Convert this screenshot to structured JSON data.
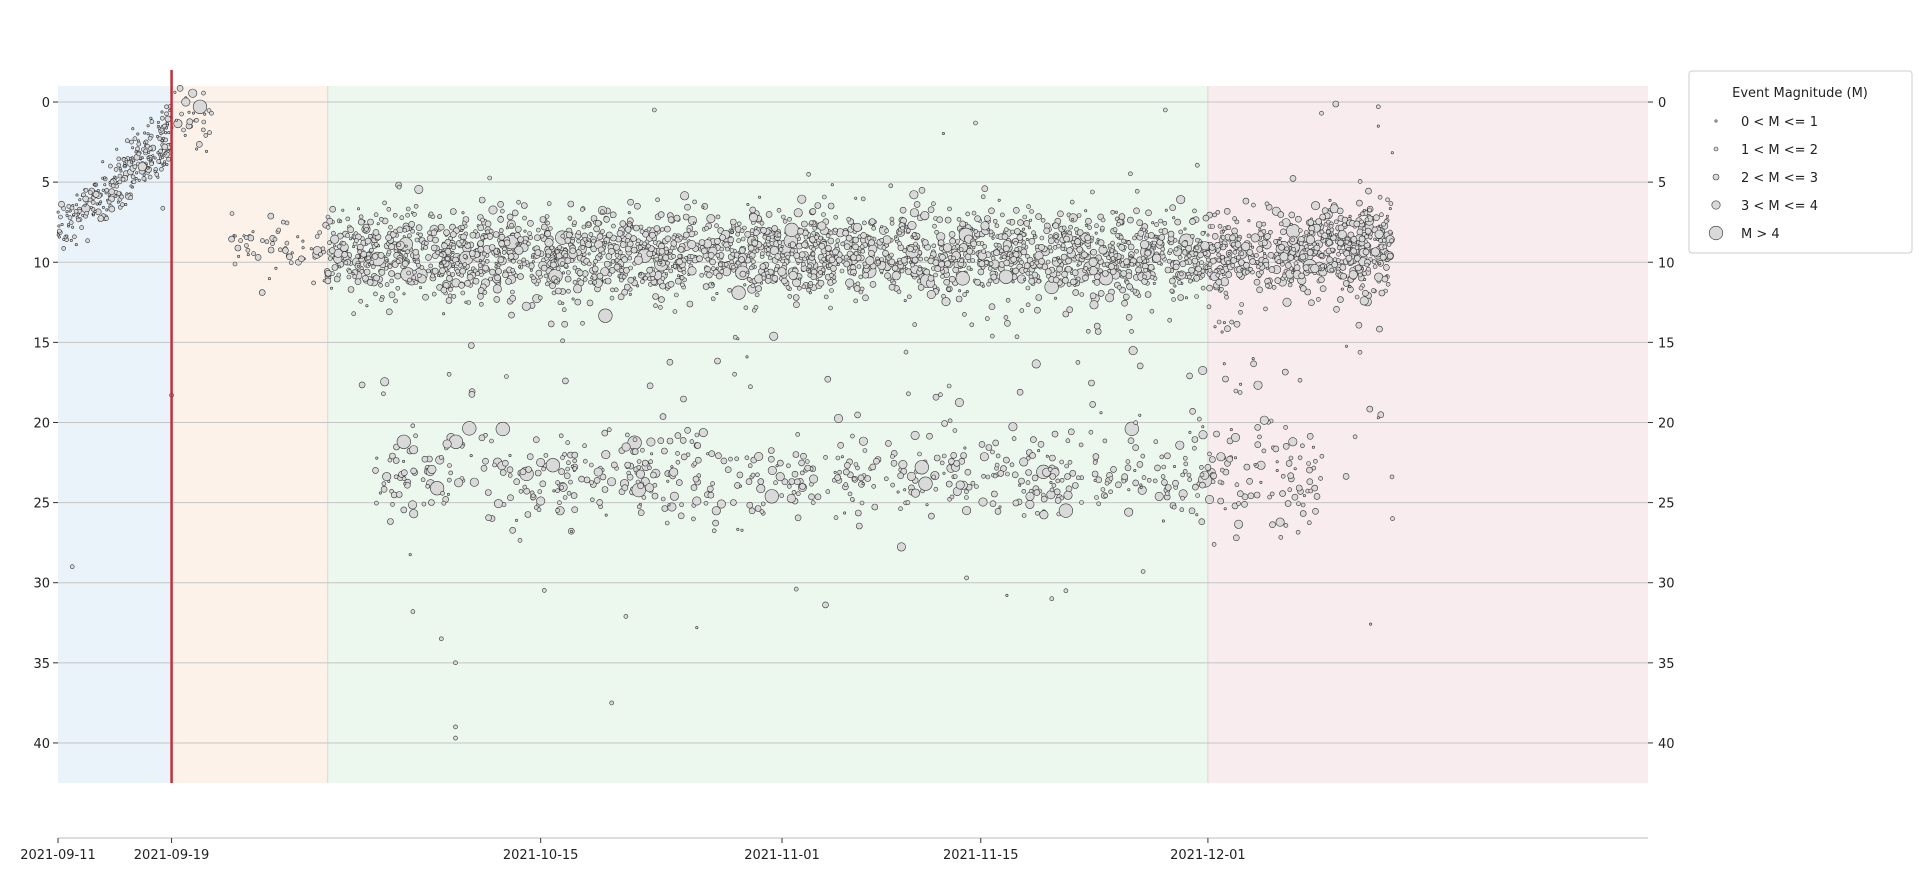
{
  "chart_data": {
    "type": "scatter",
    "title": "",
    "xlabel": "",
    "ylabel": "",
    "xlim": [
      "2021-09-11",
      "2022-01-01"
    ],
    "ylim": [
      42.5,
      -1.0
    ],
    "y_inverted": true,
    "grid": "horizontal",
    "x_ticks": [
      "2021-09-11",
      "2021-09-19",
      "2021-10-15",
      "2021-11-01",
      "2021-11-15",
      "2021-12-01"
    ],
    "y_ticks": [
      0,
      5,
      10,
      15,
      20,
      25,
      30,
      35,
      40
    ],
    "y_ticks_right": true,
    "vertical_line": {
      "date": "2021-09-19",
      "color": "#c0303a"
    },
    "phases": [
      {
        "start": "2021-09-11",
        "end": "2021-09-19",
        "color": "#eaf2fa"
      },
      {
        "start": "2021-09-19",
        "end": "2021-09-30",
        "color": "#fdf2ea"
      },
      {
        "start": "2021-09-30",
        "end": "2021-12-01",
        "color": "#ecf7ee"
      },
      {
        "start": "2021-12-01",
        "end": "2022-01-01",
        "color": "#f9ecee"
      }
    ],
    "point_style": {
      "fill": "#d9d9d9",
      "stroke": "#333333"
    },
    "legend": {
      "title": "Event Magnitude (M)",
      "position": "outside-top-right",
      "entries": [
        {
          "label": "0 < M <= 1",
          "magnitude_class": 1
        },
        {
          "label": "1 < M <= 2",
          "magnitude_class": 2
        },
        {
          "label": "2 < M <= 3",
          "magnitude_class": 3
        },
        {
          "label": "3 < M <= 4",
          "magnitude_class": 4
        },
        {
          "label": "M > 4",
          "magnitude_class": 5
        }
      ]
    },
    "clusters": [
      {
        "x0": "2021-09-11",
        "x1": "2021-09-19",
        "y_start": 8.0,
        "y_end": 3.0,
        "depth_sd": 0.9,
        "count": 230,
        "mag_weights": [
          0.45,
          0.4,
          0.13,
          0.02,
          0.0
        ]
      },
      {
        "x0": "2021-09-15",
        "x1": "2021-09-19",
        "y_start": 4.5,
        "y_end": 0.5,
        "depth_sd": 0.9,
        "count": 70,
        "mag_weights": [
          0.4,
          0.45,
          0.13,
          0.02,
          0.0
        ]
      },
      {
        "x0": "2021-09-19",
        "x1": "2021-09-22",
        "y_start": 0.5,
        "y_end": 1.5,
        "depth_sd": 1.0,
        "count": 30,
        "mag_weights": [
          0.3,
          0.45,
          0.2,
          0.05,
          0.0
        ]
      },
      {
        "x0": "2021-09-23",
        "x1": "2021-09-30",
        "y_start": 8.5,
        "y_end": 9.5,
        "depth_sd": 1.0,
        "count": 60,
        "mag_weights": [
          0.3,
          0.45,
          0.22,
          0.03,
          0.0
        ]
      },
      {
        "x0": "2021-09-30",
        "x1": "2021-12-14",
        "y_start": 9.5,
        "y_end": 9.5,
        "depth_sd": 1.3,
        "count": 3000,
        "mag_weights": [
          0.1,
          0.45,
          0.37,
          0.07,
          0.01
        ]
      },
      {
        "x0": "2021-10-03",
        "x1": "2021-12-09",
        "y_start": 23.3,
        "y_end": 23.3,
        "depth_sd": 1.5,
        "count": 700,
        "mag_weights": [
          0.1,
          0.4,
          0.38,
          0.1,
          0.02
        ]
      },
      {
        "x0": "2021-09-30",
        "x1": "2021-12-14",
        "y_start": 16.0,
        "y_end": 16.0,
        "depth_sd": 6.0,
        "count": 180,
        "mag_weights": [
          0.15,
          0.45,
          0.32,
          0.07,
          0.01
        ]
      },
      {
        "x0": "2021-12-08",
        "x1": "2021-12-14",
        "y_start": 8.0,
        "y_end": 8.0,
        "depth_sd": 1.0,
        "count": 120,
        "mag_weights": [
          0.1,
          0.4,
          0.4,
          0.1,
          0.0
        ]
      }
    ],
    "isolated_points": [
      {
        "x": "2021-09-20",
        "y": 0.0,
        "magnitude_class": 4
      },
      {
        "x": "2021-09-21",
        "y": 0.3,
        "magnitude_class": 5
      },
      {
        "x": "2021-09-19",
        "y": 18.3,
        "magnitude_class": 2
      },
      {
        "x": "2021-09-12",
        "y": 29.0,
        "magnitude_class": 2
      },
      {
        "x": "2021-10-06",
        "y": 31.8,
        "magnitude_class": 2
      },
      {
        "x": "2021-10-08",
        "y": 33.5,
        "magnitude_class": 2
      },
      {
        "x": "2021-10-09",
        "y": 35.0,
        "magnitude_class": 2
      },
      {
        "x": "2021-10-09",
        "y": 39.0,
        "magnitude_class": 2
      },
      {
        "x": "2021-10-09",
        "y": 39.7,
        "magnitude_class": 2
      },
      {
        "x": "2021-10-21",
        "y": 32.1,
        "magnitude_class": 2
      },
      {
        "x": "2021-10-20",
        "y": 37.5,
        "magnitude_class": 2
      },
      {
        "x": "2021-10-26",
        "y": 32.8,
        "magnitude_class": 1
      },
      {
        "x": "2021-11-02",
        "y": 30.4,
        "magnitude_class": 2
      },
      {
        "x": "2021-11-14",
        "y": 29.7,
        "magnitude_class": 2
      },
      {
        "x": "2021-11-20",
        "y": 31.0,
        "magnitude_class": 2
      },
      {
        "x": "2021-11-21",
        "y": 30.5,
        "magnitude_class": 2
      },
      {
        "x": "2021-11-21",
        "y": 25.5,
        "magnitude_class": 5
      },
      {
        "x": "2021-11-14",
        "y": 25.5,
        "magnitude_class": 4
      },
      {
        "x": "2021-10-15",
        "y": 22.5,
        "magnitude_class": 4
      },
      {
        "x": "2021-10-15",
        "y": 24.9,
        "magnitude_class": 4
      },
      {
        "x": "2021-10-26",
        "y": 24.9,
        "magnitude_class": 4
      },
      {
        "x": "2021-10-23",
        "y": 0.5,
        "magnitude_class": 2
      },
      {
        "x": "2021-11-28",
        "y": 0.5,
        "magnitude_class": 2
      },
      {
        "x": "2021-12-09",
        "y": 0.7,
        "magnitude_class": 2
      },
      {
        "x": "2021-12-13",
        "y": 0.3,
        "magnitude_class": 2
      },
      {
        "x": "2021-12-13",
        "y": 1.5,
        "magnitude_class": 1
      },
      {
        "x": "2021-12-13",
        "y": 19.7,
        "magnitude_class": 1
      },
      {
        "x": "2021-12-14",
        "y": 26.0,
        "magnitude_class": 2
      },
      {
        "x": "2021-12-03",
        "y": 27.2,
        "magnitude_class": 3
      },
      {
        "x": "2021-12-01",
        "y": 22.8,
        "magnitude_class": 3
      }
    ]
  }
}
